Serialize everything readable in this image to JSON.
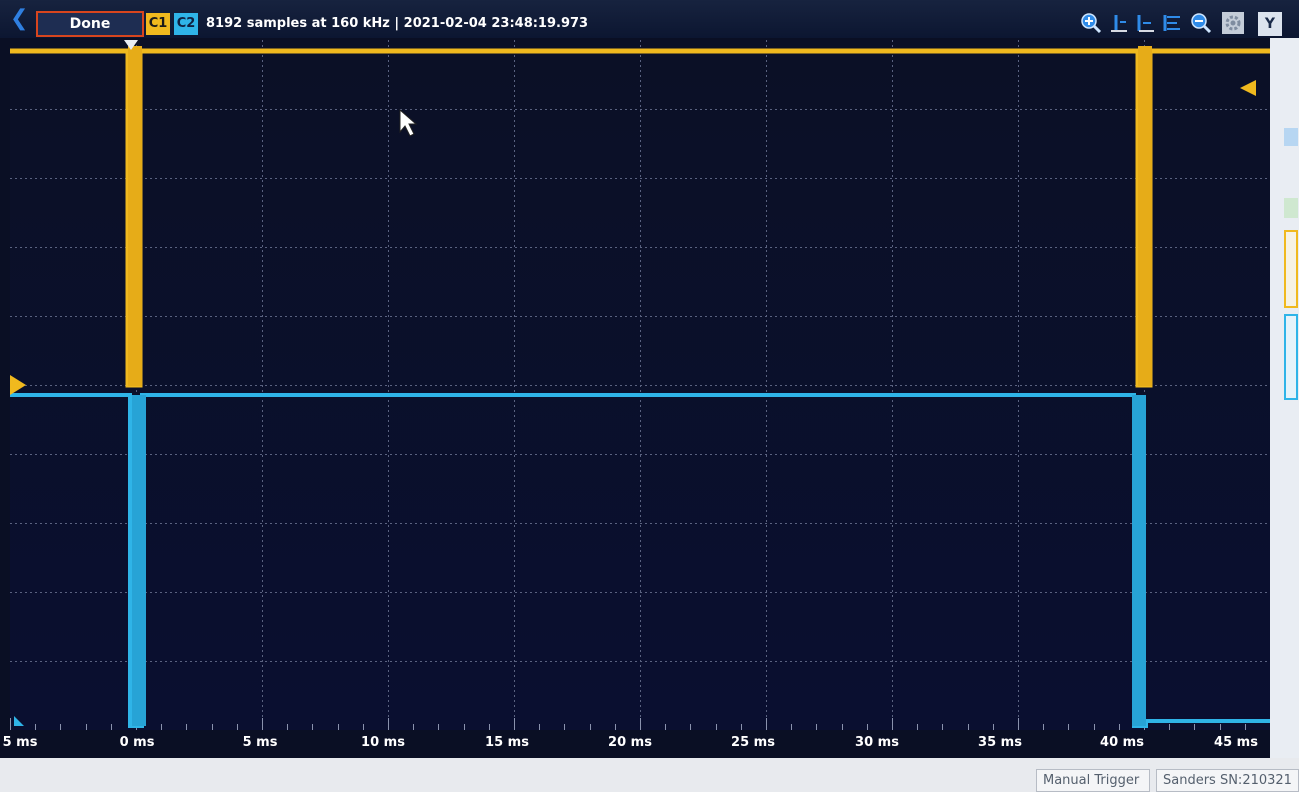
{
  "toolbar": {
    "done_label": "Done",
    "channel1_label": "C1",
    "channel2_label": "C2",
    "status": "8192 samples at 160 kHz | 2021-02-04 23:48:19.973",
    "y_label": "Y"
  },
  "axis": {
    "time_ticks": [
      "5 ms",
      "0 ms",
      "5 ms",
      "10 ms",
      "15 ms",
      "20 ms",
      "25 ms",
      "30 ms",
      "35 ms",
      "40 ms",
      "45 ms"
    ]
  },
  "footer": {
    "manual_trigger_label": "Manual Trigger",
    "device_label": "Sanders SN:210321"
  },
  "colors": {
    "channel1": "#f0b91e",
    "channel2": "#2fb4e8",
    "done_border": "#d8451e",
    "grid": "#5a6280"
  },
  "icons": [
    "back-arrow-icon",
    "zoom-in-icon",
    "align-bottom-icon",
    "align-left-icon",
    "align-lines-icon",
    "zoom-out-icon",
    "settings-icon"
  ]
}
